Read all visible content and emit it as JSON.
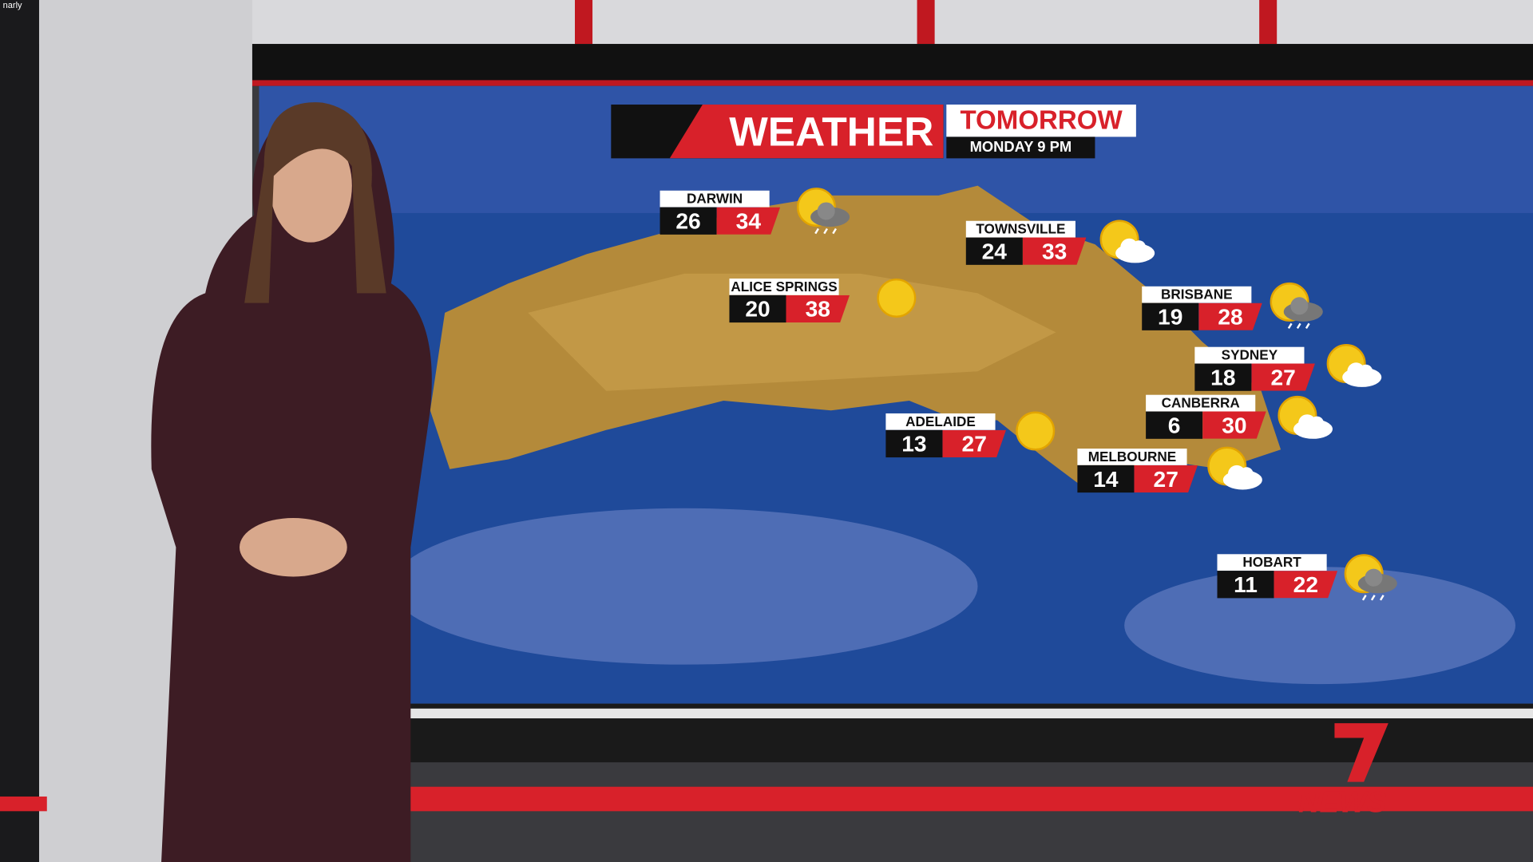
{
  "corner_text": "narly",
  "header": {
    "title": "WEATHER",
    "subtitle": "TOMORROW",
    "time": "MONDAY 9 PM"
  },
  "cities": [
    {
      "name": "DARWIN",
      "min": "26",
      "max": "34"
    },
    {
      "name": "TOWNSVILLE",
      "min": "24",
      "max": "33"
    },
    {
      "name": "ALICE SPRINGS",
      "min": "20",
      "max": "38"
    },
    {
      "name": "BRISBANE",
      "min": "19",
      "max": "28"
    },
    {
      "name": "SYDNEY",
      "min": "18",
      "max": "27"
    },
    {
      "name": "CANBERRA",
      "min": "6",
      "max": "30"
    },
    {
      "name": "ADELAIDE",
      "min": "13",
      "max": "27"
    },
    {
      "name": "MELBOURNE",
      "min": "14",
      "max": "27"
    },
    {
      "name": "HOBART",
      "min": "11",
      "max": "22"
    }
  ],
  "logo": {
    "number": "7",
    "text": "NEWS"
  }
}
